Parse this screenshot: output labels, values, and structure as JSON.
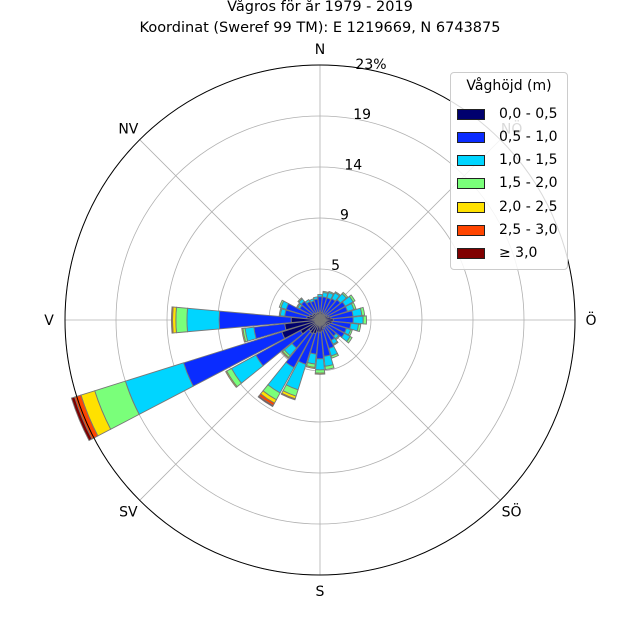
{
  "title_line1": "Vågros för år 1979 - 2019",
  "title_line2": "Koordinat (Sweref 99 TM): E 1219669, N 6743875",
  "chart_data": {
    "type": "polar-stacked-bar",
    "direction_labels": [
      "N",
      "NV",
      "V",
      "SV",
      "S",
      "SÖ",
      "Ö",
      "NÖ"
    ],
    "radial_unit": "%",
    "radial_ticks": [
      "5",
      "9",
      "14",
      "19",
      "23%"
    ],
    "radial_tick_values": [
      4.6,
      9.2,
      13.8,
      18.4,
      23.0
    ],
    "rmax": 23.0,
    "legend_title": "Våghöjd (m)",
    "legend_placement": "top-right",
    "bins": [
      {
        "label": "0,0 - 0,5",
        "color": "#00006e"
      },
      {
        "label": "0,5 - 1,0",
        "color": "#0a2cff"
      },
      {
        "label": "1,0 - 1,5",
        "color": "#00d5ff"
      },
      {
        "label": "1,5 - 2,0",
        "color": "#7aff7a"
      },
      {
        "label": "2,0 - 2,5",
        "color": "#ffe100"
      },
      {
        "label": "2,5 - 3,0",
        "color": "#ff4500"
      },
      {
        "label": "≥ 3,0",
        "color": "#800000"
      }
    ],
    "sectors": [
      {
        "dir_deg": 0,
        "values": [
          0.8,
          1.3,
          0.2,
          0,
          0,
          0,
          0
        ]
      },
      {
        "dir_deg": 11.25,
        "values": [
          0.7,
          1.4,
          0.4,
          0.1,
          0,
          0,
          0
        ]
      },
      {
        "dir_deg": 22.5,
        "values": [
          0.6,
          1.5,
          0.5,
          0.1,
          0,
          0,
          0
        ]
      },
      {
        "dir_deg": 33.75,
        "values": [
          0.6,
          1.6,
          0.6,
          0.1,
          0,
          0,
          0
        ]
      },
      {
        "dir_deg": 45,
        "values": [
          0.6,
          1.8,
          0.7,
          0.15,
          0,
          0,
          0
        ]
      },
      {
        "dir_deg": 56.25,
        "values": [
          0.7,
          1.9,
          0.8,
          0.2,
          0,
          0,
          0
        ]
      },
      {
        "dir_deg": 67.5,
        "values": [
          0.8,
          1.8,
          0.6,
          0.2,
          0,
          0,
          0
        ]
      },
      {
        "dir_deg": 78.75,
        "values": [
          1.0,
          2.0,
          0.8,
          0.25,
          0,
          0,
          0
        ]
      },
      {
        "dir_deg": 90,
        "values": [
          1.2,
          1.8,
          0.9,
          0.3,
          0,
          0,
          0
        ]
      },
      {
        "dir_deg": 101.25,
        "values": [
          1.1,
          1.7,
          0.7,
          0.2,
          0,
          0,
          0
        ]
      },
      {
        "dir_deg": 112.5,
        "values": [
          0.9,
          1.6,
          0.4,
          0.15,
          0,
          0,
          0
        ]
      },
      {
        "dir_deg": 123.75,
        "values": [
          0.8,
          1.7,
          0.6,
          0.2,
          0,
          0,
          0
        ]
      },
      {
        "dir_deg": 135,
        "values": [
          0.7,
          1.2,
          0.3,
          0.1,
          0,
          0,
          0
        ]
      },
      {
        "dir_deg": 146.25,
        "values": [
          0.7,
          1.4,
          0.4,
          0.1,
          0,
          0,
          0
        ]
      },
      {
        "dir_deg": 157.5,
        "values": [
          0.8,
          1.9,
          0.7,
          0.2,
          0,
          0,
          0
        ]
      },
      {
        "dir_deg": 168.75,
        "values": [
          1.0,
          2.3,
          0.9,
          0.3,
          0,
          0,
          0
        ]
      },
      {
        "dir_deg": 180,
        "values": [
          1.1,
          2.4,
          1.0,
          0.3,
          0.1,
          0,
          0
        ]
      },
      {
        "dir_deg": 191.25,
        "values": [
          1.1,
          2.0,
          0.9,
          0.3,
          0.1,
          0,
          0
        ]
      },
      {
        "dir_deg": 202.5,
        "values": [
          1.3,
          2.9,
          2.4,
          0.6,
          0.25,
          0.1,
          0
        ]
      },
      {
        "dir_deg": 213.75,
        "values": [
          1.4,
          3.5,
          2.6,
          0.7,
          0.35,
          0.25,
          0.1
        ]
      },
      {
        "dir_deg": 225,
        "values": [
          1.3,
          2.0,
          0.9,
          0.2,
          0.1,
          0,
          0
        ]
      },
      {
        "dir_deg": 236.25,
        "values": [
          2.0,
          4.6,
          2.5,
          0.5,
          0.1,
          0,
          0
        ]
      },
      {
        "dir_deg": 247.5,
        "values": [
          3.6,
          9.3,
          5.5,
          2.9,
          1.3,
          0.6,
          0.3
        ]
      },
      {
        "dir_deg": 258.75,
        "values": [
          3.2,
          2.8,
          0.8,
          0.2,
          0.1,
          0,
          0
        ]
      },
      {
        "dir_deg": 270,
        "values": [
          2.6,
          6.5,
          2.9,
          1.0,
          0.3,
          0.1,
          0
        ]
      },
      {
        "dir_deg": 281.25,
        "values": [
          1.2,
          2.0,
          0.4,
          0.1,
          0,
          0,
          0
        ]
      },
      {
        "dir_deg": 292.5,
        "values": [
          1.0,
          2.2,
          0.5,
          0.15,
          0,
          0,
          0
        ]
      },
      {
        "dir_deg": 303.75,
        "values": [
          0.8,
          1.3,
          0.2,
          0.1,
          0,
          0,
          0
        ]
      },
      {
        "dir_deg": 315,
        "values": [
          0.8,
          1.4,
          0.3,
          0.1,
          0,
          0,
          0
        ]
      },
      {
        "dir_deg": 326.25,
        "values": [
          0.7,
          1.2,
          0.2,
          0,
          0,
          0,
          0
        ]
      },
      {
        "dir_deg": 337.5,
        "values": [
          0.7,
          1.1,
          0.2,
          0,
          0,
          0,
          0
        ]
      },
      {
        "dir_deg": 348.75,
        "values": [
          0.7,
          1.2,
          0.2,
          0,
          0,
          0,
          0
        ]
      }
    ]
  }
}
